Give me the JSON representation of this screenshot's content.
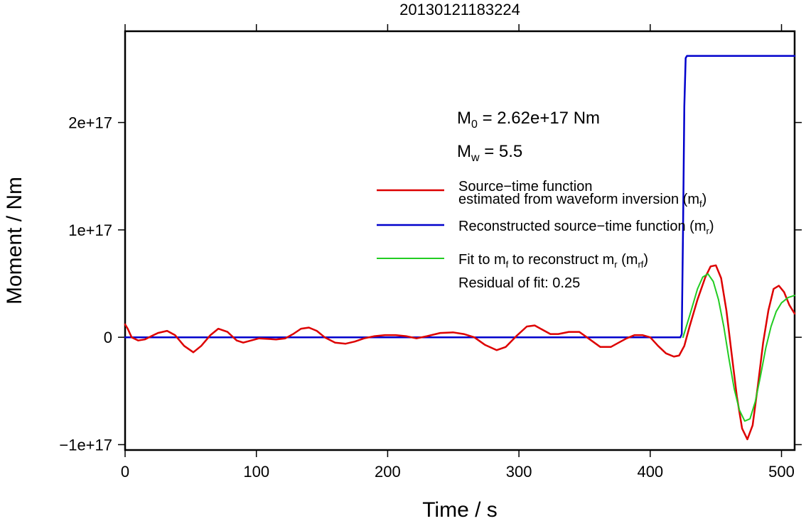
{
  "chart_data": {
    "type": "line",
    "title": "20130121183224",
    "xlabel": "Time / s",
    "ylabel": "Moment / Nm",
    "xlim": [
      0,
      510
    ],
    "ylim": [
      -1.05e+17,
      2.85e+17
    ],
    "x_ticks": [
      0,
      100,
      200,
      300,
      400,
      500
    ],
    "x_tick_labels": [
      "0",
      "100",
      "200",
      "300",
      "400",
      "500"
    ],
    "y_ticks": [
      -1e+17,
      0,
      1e+17,
      2e+17
    ],
    "y_tick_labels": [
      "−1e+17",
      "0",
      "1e+17",
      "2e+17"
    ],
    "grid": false,
    "annotations": {
      "m0_main": "M",
      "m0_sub": "0",
      "m0_value": " = 2.62e+17 Nm",
      "mw_main": "M",
      "mw_sub": "w",
      "mw_value": " = 5.5",
      "residual": "Residual of fit: 0.25"
    },
    "legend": {
      "placement": "center-right",
      "entries": [
        {
          "line1": "Source−time function",
          "line2": "estimated from waveform inversion (m",
          "sub": "f",
          "close": ")",
          "color": "#dd0000"
        },
        {
          "line1": "Reconstructed source−time function (m",
          "sub": "r",
          "close": ")",
          "color": "#0000cc"
        },
        {
          "line1a": "Fit to m",
          "sub1": "f",
          "line1b": " to reconstruct m",
          "sub2": "r",
          "line1c": " (m",
          "sub3": "rf",
          "close": ")",
          "color": "#22cc22"
        }
      ]
    },
    "series": [
      {
        "color": "#dd0000",
        "x": [
          0,
          2,
          5,
          10,
          15,
          20,
          25,
          32,
          38,
          45,
          52,
          58,
          65,
          71,
          78,
          85,
          90,
          96,
          102,
          108,
          115,
          122,
          128,
          134,
          140,
          146,
          152,
          160,
          168,
          175,
          182,
          190,
          198,
          206,
          214,
          222,
          230,
          240,
          250,
          258,
          266,
          274,
          283,
          290,
          298,
          306,
          312,
          318,
          324,
          330,
          338,
          346,
          354,
          362,
          370,
          376,
          382,
          388,
          394,
          400,
          406,
          412,
          418,
          422,
          426,
          430,
          436,
          442,
          446,
          450,
          454,
          458,
          462,
          466,
          470,
          474,
          478,
          482,
          486,
          490,
          494,
          498,
          502,
          506,
          510
        ],
        "y": [
          1.2e+16,
          8000000000000000.0,
          0,
          -3000000000000000.0,
          -2000000000000000.0,
          1000000000000000.0,
          4000000000000000.0,
          6000000000000000.0,
          2000000000000000.0,
          -8000000000000000.0,
          -1.4e+16,
          -8000000000000000.0,
          2000000000000000.0,
          8000000000000000.0,
          5000000000000000.0,
          -3000000000000000.0,
          -5000000000000000.0,
          -3000000000000000.0,
          -1000000000000000.0,
          -1500000000000000.0,
          -2000000000000000.0,
          -1000000000000000.0,
          3000000000000000.0,
          8000000000000000.0,
          9000000000000000.0,
          6000000000000000.0,
          0,
          -5000000000000000.0,
          -6000000000000000.0,
          -4000000000000000.0,
          -1000000000000000.0,
          1000000000000000.0,
          2000000000000000.0,
          2000000000000000.0,
          1000000000000000.0,
          -1000000000000000.0,
          1000000000000000.0,
          4000000000000000.0,
          4500000000000000.0,
          3000000000000000.0,
          0,
          -7000000000000000.0,
          -1.2e+16,
          -9000000000000000.0,
          1000000000000000.0,
          1e+16,
          1.1e+16,
          7000000000000000.0,
          3000000000000000.0,
          3000000000000000.0,
          5000000000000000.0,
          5000000000000000.0,
          -2000000000000000.0,
          -9000000000000000.0,
          -9000000000000000.0,
          -5000000000000000.0,
          -1000000000000000.0,
          2000000000000000.0,
          2000000000000000.0,
          0,
          -8000000000000000.0,
          -1.5e+16,
          -1.8e+16,
          -1.7e+16,
          -8000000000000000.0,
          1e+16,
          3.5e+16,
          5.6e+16,
          6.6e+16,
          6.7e+16,
          5.5e+16,
          2.5e+16,
          -1.5e+16,
          -5.5e+16,
          -8.5e+16,
          -9.5e+16,
          -8.2e+16,
          -4.5e+16,
          -5000000000000000.0,
          2.5e+16,
          4.5e+16,
          4.8e+16,
          4.2e+16,
          3e+16,
          2.2e+16
        ]
      },
      {
        "color": "#0000cc",
        "x": [
          0,
          423,
          424,
          425,
          426,
          427,
          428,
          510
        ],
        "y": [
          0,
          0,
          3000000000000000.0,
          1e+17,
          2.15e+17,
          2.6e+17,
          2.62e+17,
          2.62e+17
        ]
      },
      {
        "color": "#22cc22",
        "x": [
          425,
          430,
          436,
          440,
          444,
          448,
          452,
          456,
          460,
          464,
          468,
          472,
          476,
          480,
          484,
          488,
          492,
          496,
          500,
          505,
          510
        ],
        "y": [
          0,
          2e+16,
          4.5e+16,
          5.6e+16,
          5.9e+16,
          5.2e+16,
          3.5e+16,
          1e+16,
          -2e+16,
          -4.8e+16,
          -6.8e+16,
          -7.8e+16,
          -7.6e+16,
          -6e+16,
          -3.6e+16,
          -1e+16,
          1e+16,
          2.4e+16,
          3.2e+16,
          3.7e+16,
          3.9e+16
        ]
      }
    ]
  }
}
